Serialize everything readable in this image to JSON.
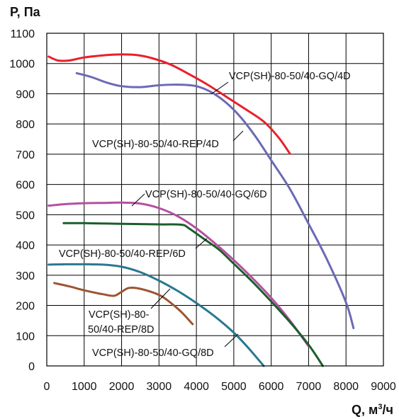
{
  "chart_data": {
    "type": "line",
    "ylabel": "P, Па",
    "xlabel_main": "Q, м",
    "xlabel_sup": "3",
    "xlabel_tail": "/ч",
    "xlim": [
      0,
      9000
    ],
    "ylim": [
      0,
      1100
    ],
    "x_ticks": [
      "0",
      "1000",
      "2000",
      "3000",
      "4000",
      "5000",
      "6000",
      "7000",
      "8000",
      "9000"
    ],
    "y_ticks": [
      "0",
      "100",
      "200",
      "300",
      "400",
      "500",
      "600",
      "700",
      "800",
      "900",
      "1000",
      "1100"
    ],
    "grid": true,
    "series": [
      {
        "name": "VCP(SH)-80-50/40-GQ/4D",
        "color": "#e8212a",
        "points": [
          [
            50,
            1023
          ],
          [
            300,
            1010
          ],
          [
            600,
            1010
          ],
          [
            1000,
            1020
          ],
          [
            1500,
            1027
          ],
          [
            2000,
            1030
          ],
          [
            2400,
            1028
          ],
          [
            2800,
            1018
          ],
          [
            3300,
            997
          ],
          [
            3800,
            965
          ],
          [
            4300,
            930
          ],
          [
            4800,
            890
          ],
          [
            5300,
            850
          ],
          [
            5800,
            808
          ],
          [
            6200,
            755
          ],
          [
            6500,
            702
          ]
        ]
      },
      {
        "name": "VCP(SH)-80-50/40-REP/4D",
        "color": "#6b6ab5",
        "points": [
          [
            800,
            968
          ],
          [
            1200,
            955
          ],
          [
            1600,
            937
          ],
          [
            2000,
            925
          ],
          [
            2500,
            922
          ],
          [
            3000,
            928
          ],
          [
            3500,
            930
          ],
          [
            4000,
            925
          ],
          [
            4400,
            905
          ],
          [
            4800,
            870
          ],
          [
            5200,
            820
          ],
          [
            5600,
            755
          ],
          [
            6000,
            680
          ],
          [
            6500,
            585
          ],
          [
            7000,
            470
          ],
          [
            7500,
            350
          ],
          [
            8000,
            210
          ],
          [
            8200,
            125
          ]
        ]
      },
      {
        "name": "VCP(SH)-80-50/40-GQ/6D",
        "color": "#b64fa2",
        "points": [
          [
            50,
            530
          ],
          [
            500,
            535
          ],
          [
            1000,
            538
          ],
          [
            1500,
            539
          ],
          [
            2000,
            540
          ],
          [
            2500,
            537
          ],
          [
            3000,
            522
          ],
          [
            3500,
            495
          ],
          [
            4000,
            455
          ],
          [
            4500,
            405
          ],
          [
            5000,
            350
          ],
          [
            5500,
            290
          ],
          [
            6000,
            225
          ],
          [
            6500,
            150
          ],
          [
            7000,
            65
          ]
        ]
      },
      {
        "name": "VCP(SH)-80-50/40-REP/6D",
        "color": "#1a5e2a",
        "points": [
          [
            450,
            472
          ],
          [
            1000,
            472
          ],
          [
            2000,
            470
          ],
          [
            3000,
            468
          ],
          [
            3600,
            467
          ],
          [
            3800,
            455
          ],
          [
            4200,
            420
          ],
          [
            4600,
            385
          ],
          [
            5000,
            338
          ],
          [
            5500,
            278
          ],
          [
            6000,
            213
          ],
          [
            6500,
            145
          ],
          [
            7000,
            70
          ],
          [
            7380,
            0
          ]
        ]
      },
      {
        "name": "VCP(SH)-80-50/40-REP/8D",
        "color": "#9c5534",
        "points": [
          [
            200,
            274
          ],
          [
            600,
            263
          ],
          [
            1000,
            250
          ],
          [
            1500,
            237
          ],
          [
            1800,
            232
          ],
          [
            2000,
            245
          ],
          [
            2200,
            258
          ],
          [
            2500,
            255
          ],
          [
            3000,
            235
          ],
          [
            3300,
            210
          ],
          [
            3600,
            178
          ],
          [
            3900,
            138
          ]
        ]
      },
      {
        "name": "VCP(SH)-80-50/40-GQ/8D",
        "color": "#2a7890",
        "points": [
          [
            50,
            335
          ],
          [
            500,
            336
          ],
          [
            1000,
            336
          ],
          [
            1500,
            335
          ],
          [
            2000,
            328
          ],
          [
            2500,
            310
          ],
          [
            3000,
            282
          ],
          [
            3500,
            248
          ],
          [
            4000,
            208
          ],
          [
            4500,
            163
          ],
          [
            5000,
            110
          ],
          [
            5400,
            58
          ],
          [
            5800,
            0
          ]
        ]
      }
    ],
    "annotations": [
      {
        "text": "VCP(SH)-80-50/40-GQ/4D",
        "series": 0
      },
      {
        "text": "VCP(SH)-80-50/40-REP/4D",
        "series": 1
      },
      {
        "text": "VCP(SH)-80-50/40-GQ/6D",
        "series": 2
      },
      {
        "text": "VCP(SH)-80-50/40-REP/6D",
        "series": 3
      },
      {
        "text_line1": "VCP(SH)-80-",
        "text_line2": "50/40-REP/8D",
        "series": 4
      },
      {
        "text": "VCP(SH)-80-50/40-GQ/8D",
        "series": 5
      }
    ]
  }
}
